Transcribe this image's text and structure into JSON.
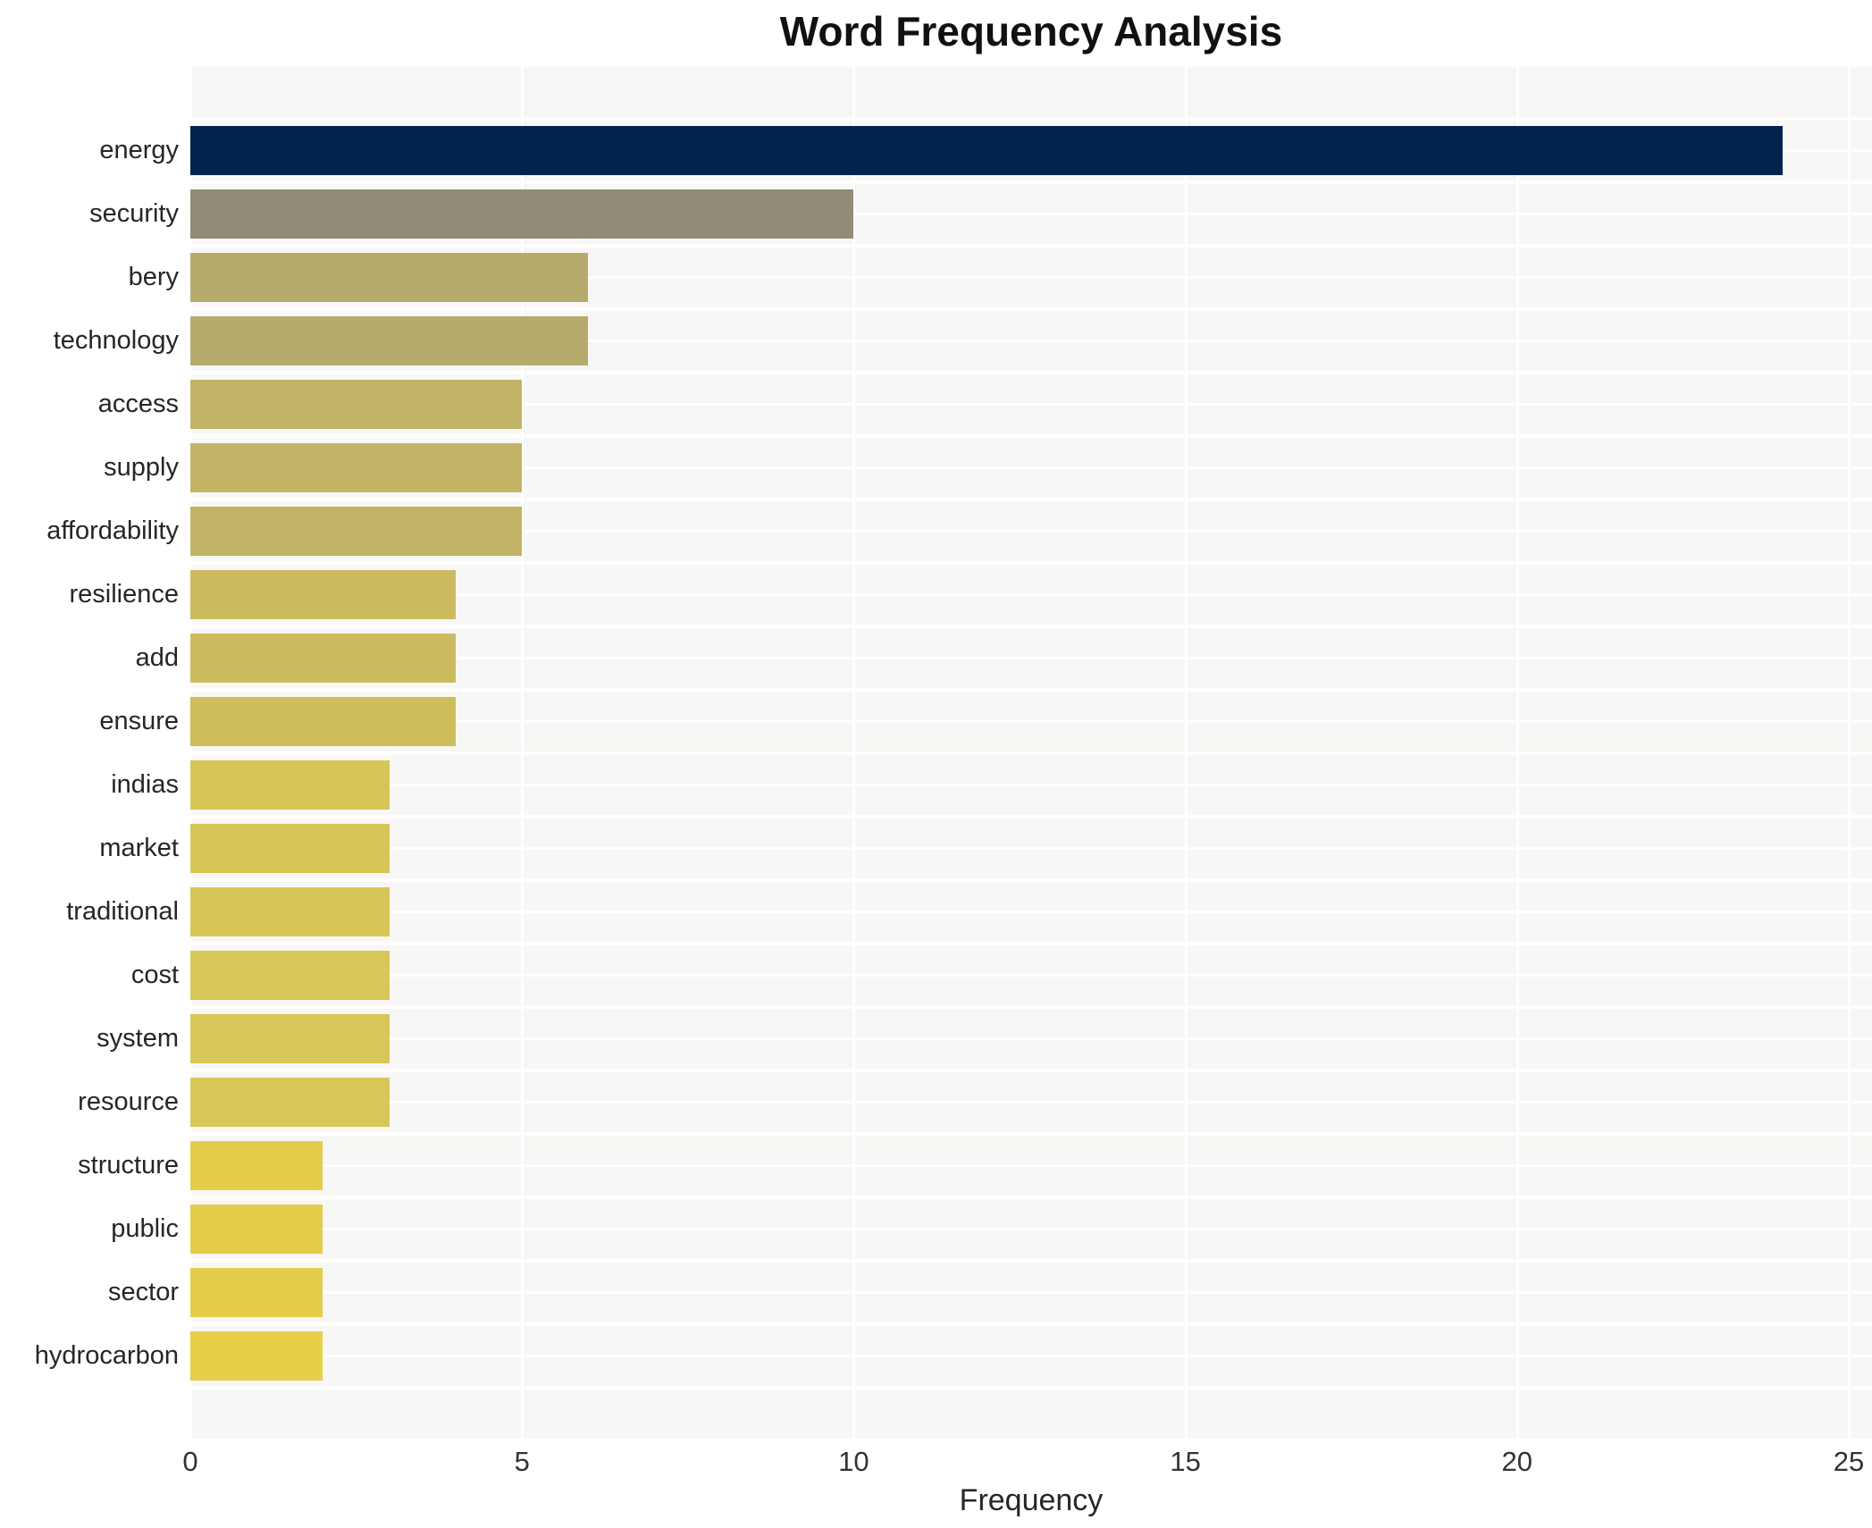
{
  "chart": {
    "title": "Word Frequency Analysis",
    "xlabel": "Frequency"
  },
  "chart_data": {
    "type": "bar",
    "orientation": "horizontal",
    "title": "Word Frequency Analysis",
    "xlabel": "Frequency",
    "ylabel": "",
    "categories": [
      "energy",
      "security",
      "bery",
      "technology",
      "access",
      "supply",
      "affordability",
      "resilience",
      "add",
      "ensure",
      "indias",
      "market",
      "traditional",
      "cost",
      "system",
      "resource",
      "structure",
      "public",
      "sector",
      "hydrocarbon"
    ],
    "values": [
      24,
      10,
      6,
      6,
      5,
      5,
      5,
      4,
      4,
      4,
      3,
      3,
      3,
      3,
      3,
      3,
      2,
      2,
      2,
      2
    ],
    "bar_colors": [
      "#02234e",
      "#918c76",
      "#b6ab6d",
      "#b6ab6d",
      "#c1b466",
      "#c1b466",
      "#c1b466",
      "#ccbc5f",
      "#ccbc5f",
      "#cebd5d",
      "#d7c556",
      "#d7c556",
      "#d7c556",
      "#d8c656",
      "#d8c656",
      "#d8c656",
      "#e5cd4c",
      "#e5cd4c",
      "#e5cd4c",
      "#e7cf4a"
    ],
    "xlim": [
      0,
      25
    ],
    "xticks": [
      0,
      5,
      10,
      15,
      20,
      25
    ],
    "grid": true,
    "legend": false,
    "plot_bg": "#f7f7f5",
    "grid_color": "#ffffff",
    "title_color": "#111111",
    "tick_color": "#333333",
    "label_color": "#262626"
  }
}
